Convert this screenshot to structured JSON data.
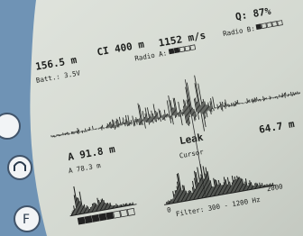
{
  "header": {
    "distance": "156.5 m",
    "ci": "CI 400 m",
    "speed": "1152 m/s",
    "quality": "Q: 87%",
    "battery": "Batt.: 3.5V",
    "radio_a": "Radio A:",
    "radio_b": "Radio B:"
  },
  "waveform": {
    "right_distance": "64.7 m",
    "label": "Leak",
    "cursor": "Cursor"
  },
  "spectrum": {
    "distance_a": "A 91.8 m",
    "distance_b": "A 78.3 m",
    "axis_start": "0",
    "axis_end": "2000",
    "filter": "Filter: 300 - 1200 Hz"
  }
}
